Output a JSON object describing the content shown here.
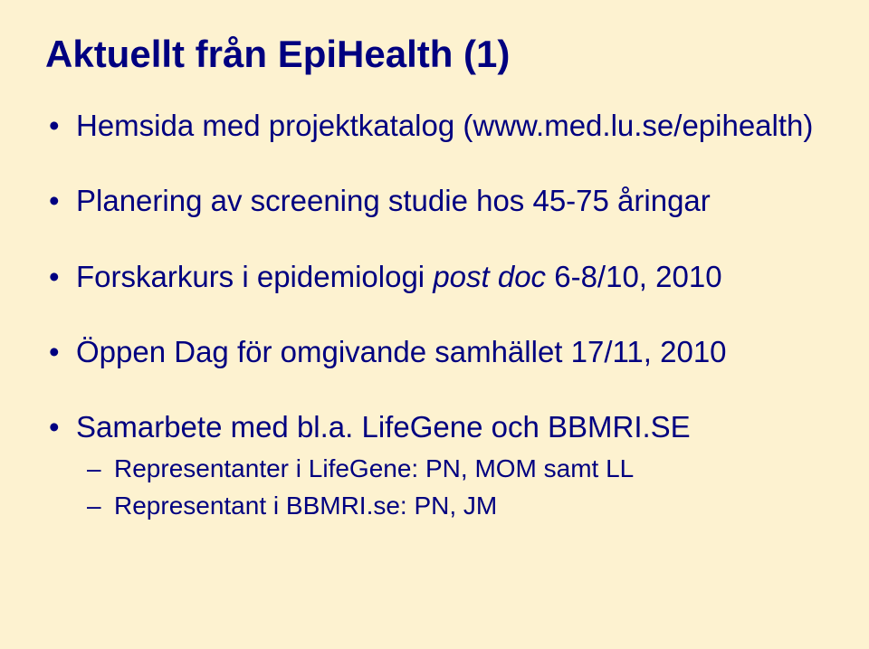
{
  "background_color": "#fdf2d0",
  "text_color": "#000080",
  "title_fontsize": 42,
  "body_fontsize": 33,
  "sub_fontsize": 28,
  "title": "Aktuellt från EpiHealth (1)",
  "bullets": {
    "b0": "Hemsida med projektkatalog (www.med.lu.se/epihealth)",
    "b1_pre": "Planering av screening studie hos 45-75 åringar",
    "b2_pre": "Forskarkurs i epidemiologi ",
    "b2_italic": "post doc",
    "b2_post": " 6-8/10, 2010",
    "b3": "Öppen Dag för omgivande samhället 17/11, 2010",
    "b4": "Samarbete med bl.a. LifeGene och BBMRI.SE",
    "b4_sub0": "Representanter i LifeGene: PN, MOM samt LL",
    "b4_sub1": "Representant i BBMRI.se: PN, JM"
  }
}
